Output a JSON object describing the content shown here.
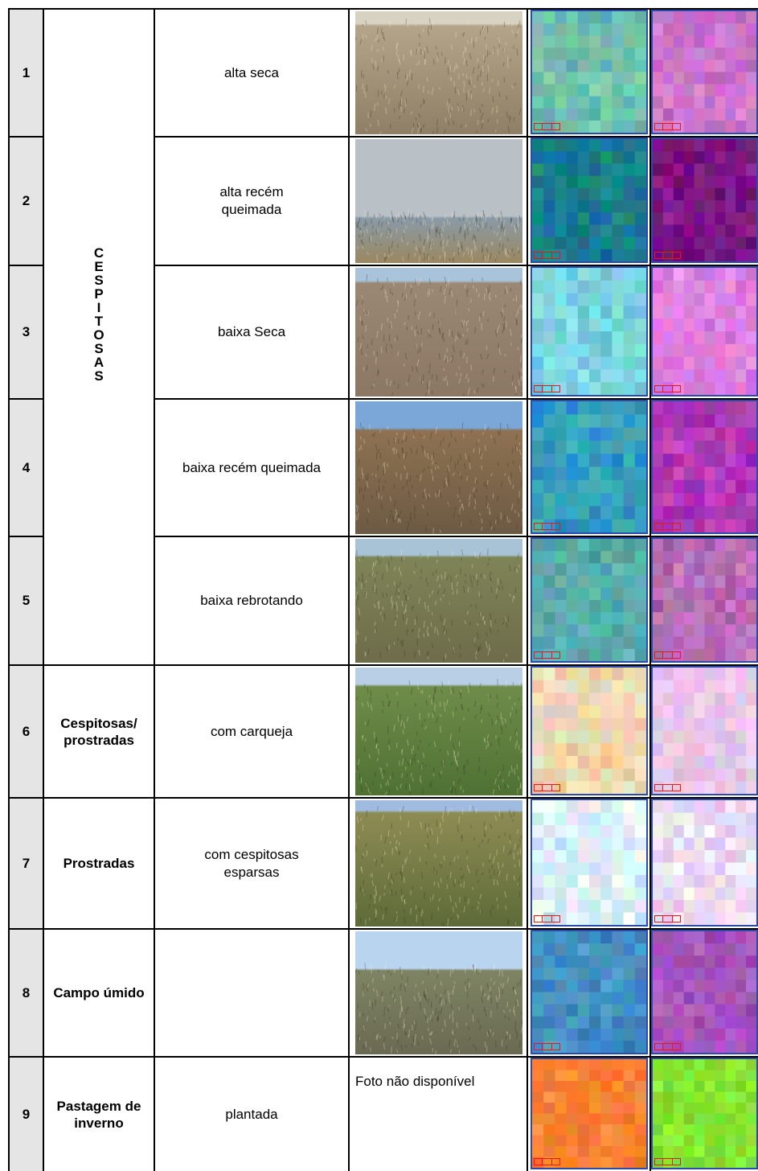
{
  "rows": [
    {
      "num": "1",
      "desc": "alta seca",
      "photo": "dry-tall-grassland-photo",
      "rgb": {
        "c1": "#7ec9a8",
        "c2": "#5fb4b4"
      },
      "cir": {
        "c1": "#d77fd0",
        "c2": "#c06cc6"
      }
    },
    {
      "num": "2",
      "desc": "alta recém queimada",
      "photo": "burning-grassland-smoke-photo",
      "rgb": {
        "c1": "#138a79",
        "c2": "#1f6ea5"
      },
      "cir": {
        "c1": "#8c1a96",
        "c2": "#6a0f6f"
      }
    },
    {
      "num": "3",
      "desc": "baixa Seca",
      "photo": "dry-short-grassland-photo",
      "rgb": {
        "c1": "#8ae0e8",
        "c2": "#6cc6d5"
      },
      "cir": {
        "c1": "#ea8fe5",
        "c2": "#d46ed8"
      }
    },
    {
      "num": "4",
      "desc": "baixa recém queimada",
      "photo": "burned-short-grassland-photo",
      "rgb": {
        "c1": "#3fb4b0",
        "c2": "#2a8ec8"
      },
      "cir": {
        "c1": "#c440c4",
        "c2": "#9c2ea8"
      }
    },
    {
      "num": "5",
      "desc": "baixa rebrotando",
      "photo": "regrowing-grassland-photo",
      "rgb": {
        "c1": "#63b7b5",
        "c2": "#4fa5a4"
      },
      "cir": {
        "c1": "#c779c5",
        "c2": "#a45fa8"
      }
    },
    {
      "num": "6",
      "type": "Cespitosas/\nprostradas",
      "desc": "com carqueja",
      "photo": "green-grassland-carqueja-photo",
      "rgb": {
        "c1": "#e8e2c4",
        "c2": "#f1c99a"
      },
      "cir": {
        "c1": "#f2c8f0",
        "c2": "#e1c4e4"
      }
    },
    {
      "num": "7",
      "type": "Prostradas",
      "desc": "com cespitosas esparsas",
      "photo": "sparse-tussocks-photo",
      "rgb": {
        "c1": "#f6f8fc",
        "c2": "#bfe6f2"
      },
      "cir": {
        "c1": "#f8f2fb",
        "c2": "#e2c2ef"
      }
    },
    {
      "num": "8",
      "type": "Campo úmido",
      "desc": "",
      "photo": "wet-grassland-photo",
      "rgb": {
        "c1": "#4a96c8",
        "c2": "#3e86b8"
      },
      "cir": {
        "c1": "#b25ec6",
        "c2": "#9a4ab2"
      }
    },
    {
      "num": "9",
      "type": "Pastagem de inverno",
      "desc": "plantada",
      "no_photo": "Foto não disponível",
      "rgb": {
        "c1": "#ff8f3c",
        "c2": "#f47a2a"
      },
      "cir": {
        "c1": "#8ef03a",
        "c2": "#7ad82c"
      }
    }
  ],
  "group_label_letters": [
    "C",
    "E",
    "S",
    "P",
    "I",
    "T",
    "O",
    "S",
    "A",
    "S"
  ]
}
